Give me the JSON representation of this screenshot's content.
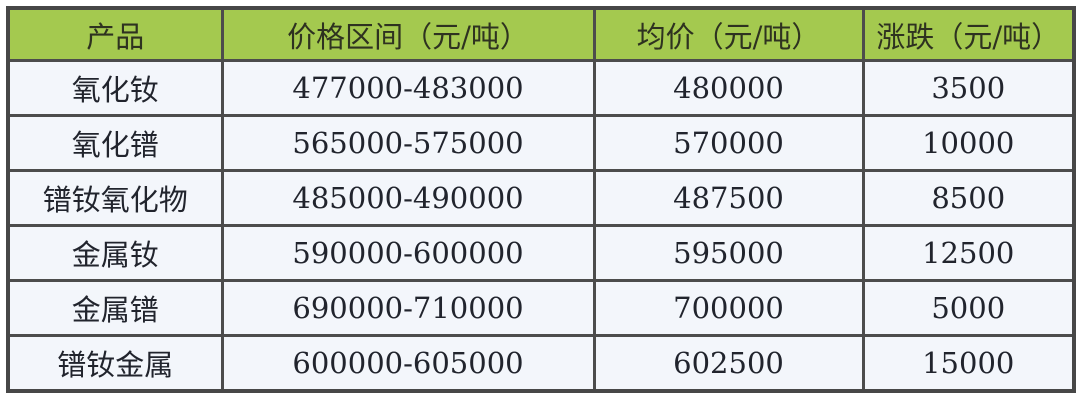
{
  "chart_data": {
    "type": "table",
    "columns": [
      "产品",
      "价格区间（元/吨）",
      "均价（元/吨）",
      "涨跌（元/吨）"
    ],
    "rows": [
      [
        "氧化钕",
        "477000-483000",
        "480000",
        "3500"
      ],
      [
        "氧化镨",
        "565000-575000",
        "570000",
        "10000"
      ],
      [
        "镨钕氧化物",
        "485000-490000",
        "487500",
        "8500"
      ],
      [
        "金属钕",
        "590000-600000",
        "595000",
        "12500"
      ],
      [
        "金属镨",
        "690000-710000",
        "700000",
        "5000"
      ],
      [
        "镨钕金属",
        "600000-605000",
        "602500",
        "15000"
      ]
    ]
  },
  "colors": {
    "header_bg": "#a4c94f",
    "cell_bg": "#f3f6fb",
    "border": "#4c4c4c",
    "header_text": "#2e3220",
    "body_text": "#21242d"
  }
}
